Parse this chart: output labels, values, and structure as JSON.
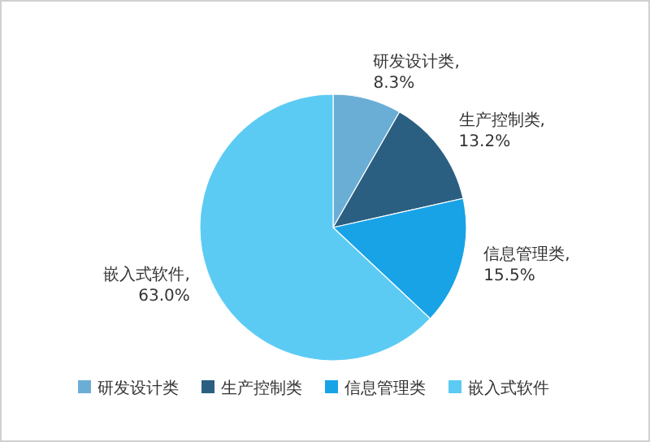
{
  "chart_data": {
    "type": "pie",
    "categories": [
      "研发设计类",
      "生产控制类",
      "信息管理类",
      "嵌入式软件"
    ],
    "values": [
      8.3,
      13.2,
      15.5,
      63.0
    ],
    "value_labels": [
      "研发设计类, 8.3%",
      "生产控制类, 13.2%",
      "信息管理类, 15.5%",
      "嵌入式软件, 63.0%"
    ],
    "colors": [
      "#6aaed6",
      "#2b5f82",
      "#18a3e6",
      "#5ccbf4"
    ],
    "legend": "bottom"
  }
}
